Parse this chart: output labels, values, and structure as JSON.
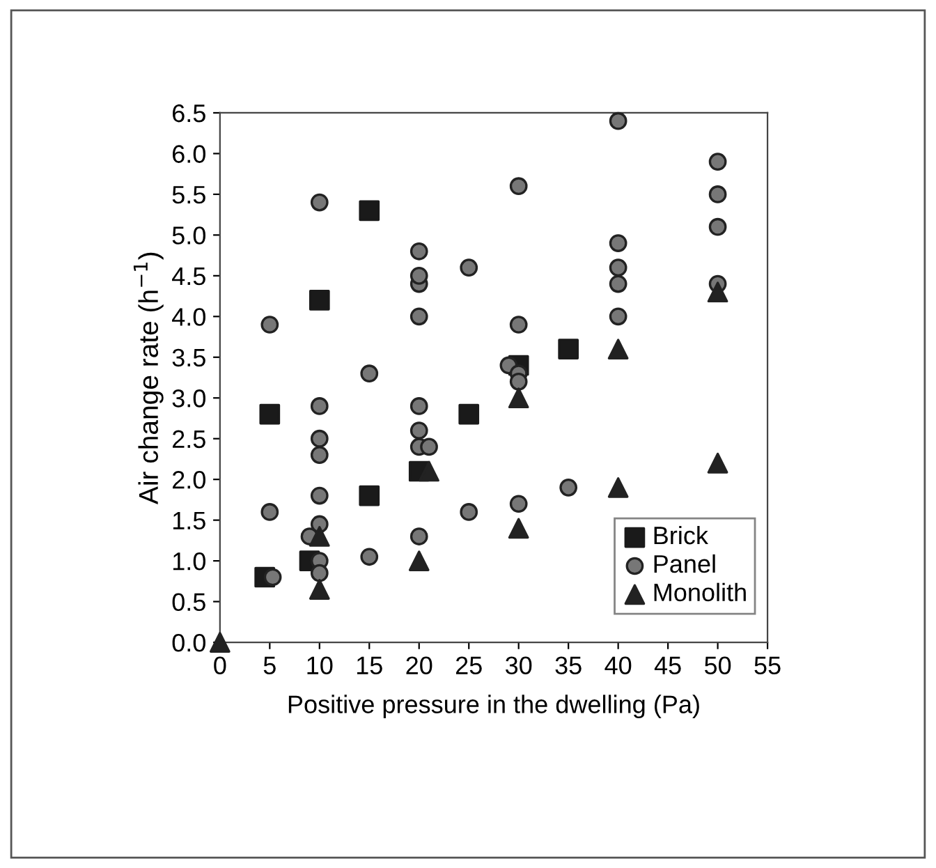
{
  "chart_data": {
    "type": "scatter",
    "xlabel": "Positive pressure in the dwelling (Pa)",
    "ylabel": "Air change rate (h$^{−1}$)",
    "xlim": [
      0,
      55
    ],
    "xticks": [
      0,
      5,
      10,
      15,
      20,
      25,
      30,
      35,
      40,
      45,
      50,
      55
    ],
    "ylim": [
      0,
      6.5
    ],
    "yticks": [
      {
        "value": 0,
        "label": "0.0"
      },
      {
        "value": 0.5,
        "label": "0.5"
      },
      {
        "value": 1,
        "label": "1.0"
      },
      {
        "value": 1.5,
        "label": "1.5"
      },
      {
        "value": 2,
        "label": "2.0"
      },
      {
        "value": 2.5,
        "label": "2.5"
      },
      {
        "value": 3,
        "label": "3.0"
      },
      {
        "value": 3.5,
        "label": "3.5"
      },
      {
        "value": 4,
        "label": "4.0"
      },
      {
        "value": 4.5,
        "label": "4.5"
      },
      {
        "value": 5,
        "label": "5.0"
      },
      {
        "value": 5.5,
        "label": "5.5"
      },
      {
        "value": 6,
        "label": "6.0"
      },
      {
        "value": 6.5,
        "label": "6.5"
      }
    ],
    "grid": false,
    "legend": "bottom right",
    "series": [
      {
        "name": "Brick",
        "color": "#1a1a1a",
        "marker": "square",
        "x": [
          4.5,
          5,
          9,
          10,
          15,
          15,
          20,
          25,
          30,
          35
        ],
        "values": [
          0.8,
          2.8,
          1.0,
          4.2,
          5.3,
          1.8,
          2.1,
          2.8,
          3.4,
          3.6
        ]
      },
      {
        "name": "Panel",
        "color": "#777777",
        "marker": "circle",
        "x": [
          5.3,
          5,
          5,
          9,
          10,
          10,
          10,
          10,
          10,
          10,
          10,
          10,
          15,
          15,
          20,
          20,
          21,
          20,
          20,
          20,
          20,
          20,
          20,
          25,
          25,
          29,
          30,
          30,
          30,
          30,
          30,
          35,
          40,
          40,
          40,
          40,
          40,
          50,
          50,
          50,
          50
        ],
        "values": [
          0.8,
          1.6,
          3.9,
          1.3,
          1.45,
          1.0,
          0.85,
          1.8,
          2.3,
          2.5,
          2.9,
          5.4,
          1.05,
          3.3,
          1.3,
          2.4,
          2.4,
          2.6,
          2.9,
          4.0,
          4.4,
          4.5,
          4.8,
          1.6,
          4.6,
          3.4,
          3.3,
          3.2,
          1.7,
          3.9,
          5.6,
          1.9,
          4.0,
          4.4,
          4.6,
          4.9,
          6.4,
          4.4,
          5.1,
          5.5,
          5.9
        ]
      },
      {
        "name": "Monolith",
        "color": "#222222",
        "marker": "triangle",
        "x": [
          0,
          10,
          10,
          20,
          21,
          30,
          30,
          40,
          40,
          50,
          50
        ],
        "values": [
          0,
          0.65,
          1.3,
          1.0,
          2.1,
          3.0,
          1.4,
          3.6,
          1.9,
          4.3,
          2.2
        ]
      }
    ]
  }
}
